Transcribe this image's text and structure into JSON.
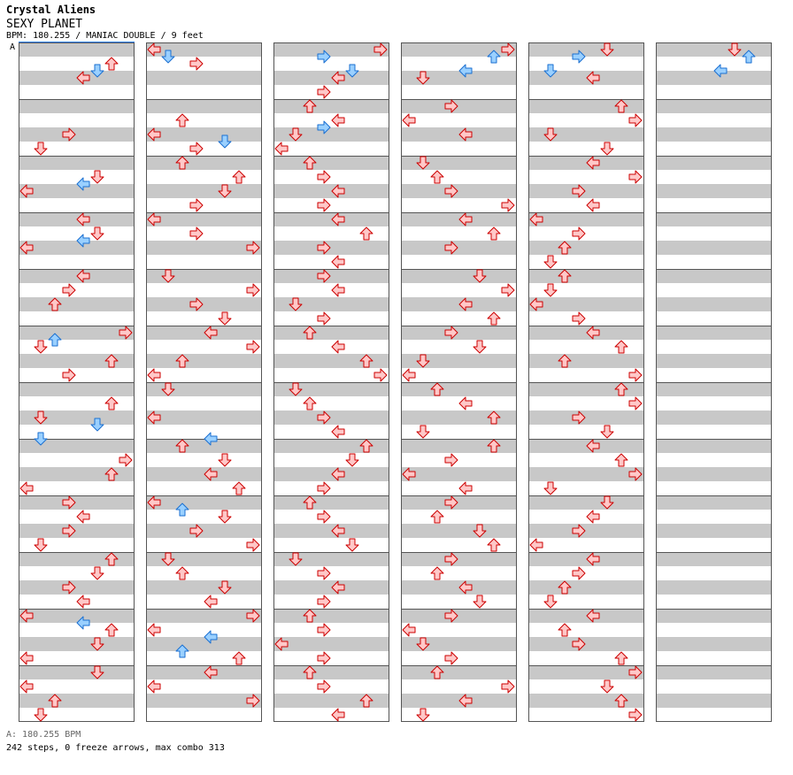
{
  "header": {
    "artist": "Crystal Aliens",
    "song": "SEXY PLANET",
    "meta": "BPM: 180.255 / MANIAC DOUBLE / 9 feet",
    "bpm_marker": "A"
  },
  "footer": {
    "bpm": "A: 180.255 BPM",
    "stats": "242 steps, 0 freeze arrows, max combo 313"
  },
  "colors": {
    "stripe_gray": "#c8c8c8",
    "stripe_white": "#ffffff",
    "border": "#555555",
    "arrow_red_fill": "#ffc8c8",
    "arrow_red_stroke": "#cc0000",
    "arrow_blue_fill": "#9ad0ff",
    "arrow_blue_stroke": "#1a6fd1"
  },
  "chart_data": {
    "type": "step-chart",
    "columns": 6,
    "measures_per_column": 12,
    "lanes": 8,
    "rows_per_measure": 16,
    "lane_directions": [
      "left",
      "down",
      "up",
      "right",
      "left",
      "down",
      "up",
      "right"
    ],
    "notes": [
      [
        0,
        0,
        4,
        6
      ],
      [
        0,
        0,
        6,
        5
      ],
      [
        0,
        0,
        8,
        4
      ],
      [
        0,
        1,
        8,
        3
      ],
      [
        0,
        1,
        12,
        1
      ],
      [
        0,
        2,
        4,
        5
      ],
      [
        0,
        2,
        6,
        4
      ],
      [
        0,
        2,
        8,
        0
      ],
      [
        0,
        3,
        0,
        4
      ],
      [
        0,
        3,
        4,
        5
      ],
      [
        0,
        3,
        6,
        4
      ],
      [
        0,
        3,
        8,
        0
      ],
      [
        0,
        4,
        0,
        4
      ],
      [
        0,
        4,
        4,
        3
      ],
      [
        0,
        4,
        8,
        2
      ],
      [
        0,
        5,
        0,
        7
      ],
      [
        0,
        5,
        2,
        2
      ],
      [
        0,
        5,
        4,
        1
      ],
      [
        0,
        5,
        8,
        6
      ],
      [
        0,
        5,
        12,
        3
      ],
      [
        0,
        6,
        4,
        6
      ],
      [
        0,
        6,
        8,
        1
      ],
      [
        0,
        6,
        10,
        5
      ],
      [
        0,
        6,
        14,
        1
      ],
      [
        0,
        7,
        4,
        7
      ],
      [
        0,
        7,
        8,
        6
      ],
      [
        0,
        7,
        12,
        0
      ],
      [
        0,
        8,
        0,
        3
      ],
      [
        0,
        8,
        4,
        4
      ],
      [
        0,
        8,
        8,
        3
      ],
      [
        0,
        8,
        12,
        1
      ],
      [
        0,
        9,
        0,
        6
      ],
      [
        0,
        9,
        4,
        5
      ],
      [
        0,
        9,
        8,
        3
      ],
      [
        0,
        9,
        12,
        4
      ],
      [
        0,
        10,
        0,
        0
      ],
      [
        0,
        10,
        2,
        4
      ],
      [
        0,
        10,
        4,
        6
      ],
      [
        0,
        10,
        8,
        5
      ],
      [
        0,
        10,
        12,
        0
      ],
      [
        0,
        11,
        0,
        5
      ],
      [
        0,
        11,
        4,
        0
      ],
      [
        0,
        11,
        8,
        2
      ],
      [
        0,
        11,
        12,
        1
      ],
      [
        1,
        0,
        0,
        0
      ],
      [
        1,
        0,
        2,
        1
      ],
      [
        1,
        0,
        4,
        3
      ],
      [
        1,
        1,
        4,
        2
      ],
      [
        1,
        1,
        8,
        0
      ],
      [
        1,
        1,
        10,
        5
      ],
      [
        1,
        1,
        12,
        3
      ],
      [
        1,
        2,
        0,
        2
      ],
      [
        1,
        2,
        4,
        6
      ],
      [
        1,
        2,
        8,
        5
      ],
      [
        1,
        2,
        12,
        3
      ],
      [
        1,
        3,
        0,
        0
      ],
      [
        1,
        3,
        4,
        3
      ],
      [
        1,
        3,
        8,
        7
      ],
      [
        1,
        4,
        0,
        1
      ],
      [
        1,
        4,
        4,
        7
      ],
      [
        1,
        4,
        8,
        3
      ],
      [
        1,
        4,
        12,
        5
      ],
      [
        1,
        5,
        0,
        4
      ],
      [
        1,
        5,
        4,
        7
      ],
      [
        1,
        5,
        8,
        2
      ],
      [
        1,
        5,
        12,
        0
      ],
      [
        1,
        6,
        0,
        1
      ],
      [
        1,
        6,
        8,
        0
      ],
      [
        1,
        6,
        14,
        4
      ],
      [
        1,
        7,
        0,
        2
      ],
      [
        1,
        7,
        4,
        5
      ],
      [
        1,
        7,
        8,
        4
      ],
      [
        1,
        7,
        12,
        6
      ],
      [
        1,
        8,
        0,
        0
      ],
      [
        1,
        8,
        2,
        2
      ],
      [
        1,
        8,
        4,
        5
      ],
      [
        1,
        8,
        8,
        3
      ],
      [
        1,
        8,
        12,
        7
      ],
      [
        1,
        9,
        0,
        1
      ],
      [
        1,
        9,
        4,
        2
      ],
      [
        1,
        9,
        8,
        5
      ],
      [
        1,
        9,
        12,
        4
      ],
      [
        1,
        10,
        0,
        7
      ],
      [
        1,
        10,
        4,
        0
      ],
      [
        1,
        10,
        6,
        4
      ],
      [
        1,
        10,
        10,
        2
      ],
      [
        1,
        10,
        12,
        6
      ],
      [
        1,
        11,
        0,
        4
      ],
      [
        1,
        11,
        4,
        0
      ],
      [
        1,
        11,
        8,
        7
      ],
      [
        2,
        0,
        0,
        7
      ],
      [
        2,
        0,
        2,
        3
      ],
      [
        2,
        0,
        6,
        5
      ],
      [
        2,
        0,
        8,
        4
      ],
      [
        2,
        0,
        12,
        3
      ],
      [
        2,
        1,
        0,
        2
      ],
      [
        2,
        1,
        4,
        4
      ],
      [
        2,
        1,
        6,
        3
      ],
      [
        2,
        1,
        8,
        1
      ],
      [
        2,
        1,
        12,
        0
      ],
      [
        2,
        2,
        0,
        2
      ],
      [
        2,
        2,
        4,
        3
      ],
      [
        2,
        2,
        8,
        4
      ],
      [
        2,
        2,
        12,
        3
      ],
      [
        2,
        3,
        0,
        4
      ],
      [
        2,
        3,
        4,
        6
      ],
      [
        2,
        3,
        8,
        3
      ],
      [
        2,
        3,
        12,
        4
      ],
      [
        2,
        4,
        0,
        3
      ],
      [
        2,
        4,
        4,
        4
      ],
      [
        2,
        4,
        8,
        1
      ],
      [
        2,
        4,
        12,
        3
      ],
      [
        2,
        5,
        0,
        2
      ],
      [
        2,
        5,
        4,
        4
      ],
      [
        2,
        5,
        8,
        6
      ],
      [
        2,
        5,
        12,
        7
      ],
      [
        2,
        6,
        0,
        1
      ],
      [
        2,
        6,
        4,
        2
      ],
      [
        2,
        6,
        8,
        3
      ],
      [
        2,
        6,
        12,
        4
      ],
      [
        2,
        7,
        0,
        6
      ],
      [
        2,
        7,
        4,
        5
      ],
      [
        2,
        7,
        8,
        4
      ],
      [
        2,
        7,
        12,
        3
      ],
      [
        2,
        8,
        0,
        2
      ],
      [
        2,
        8,
        4,
        3
      ],
      [
        2,
        8,
        8,
        4
      ],
      [
        2,
        8,
        12,
        5
      ],
      [
        2,
        9,
        0,
        1
      ],
      [
        2,
        9,
        4,
        3
      ],
      [
        2,
        9,
        8,
        4
      ],
      [
        2,
        9,
        12,
        3
      ],
      [
        2,
        10,
        0,
        2
      ],
      [
        2,
        10,
        4,
        3
      ],
      [
        2,
        10,
        8,
        0
      ],
      [
        2,
        10,
        12,
        3
      ],
      [
        2,
        11,
        0,
        2
      ],
      [
        2,
        11,
        4,
        3
      ],
      [
        2,
        11,
        8,
        6
      ],
      [
        2,
        11,
        12,
        4
      ],
      [
        3,
        0,
        0,
        7
      ],
      [
        3,
        0,
        2,
        6
      ],
      [
        3,
        0,
        6,
        4
      ],
      [
        3,
        0,
        8,
        1
      ],
      [
        3,
        1,
        0,
        3
      ],
      [
        3,
        1,
        4,
        0
      ],
      [
        3,
        1,
        8,
        4
      ],
      [
        3,
        2,
        0,
        1
      ],
      [
        3,
        2,
        4,
        2
      ],
      [
        3,
        2,
        8,
        3
      ],
      [
        3,
        2,
        12,
        7
      ],
      [
        3,
        3,
        0,
        4
      ],
      [
        3,
        3,
        4,
        6
      ],
      [
        3,
        3,
        8,
        3
      ],
      [
        3,
        4,
        0,
        5
      ],
      [
        3,
        4,
        4,
        7
      ],
      [
        3,
        4,
        8,
        4
      ],
      [
        3,
        4,
        12,
        6
      ],
      [
        3,
        5,
        0,
        3
      ],
      [
        3,
        5,
        4,
        5
      ],
      [
        3,
        5,
        8,
        1
      ],
      [
        3,
        5,
        12,
        0
      ],
      [
        3,
        6,
        0,
        2
      ],
      [
        3,
        6,
        4,
        4
      ],
      [
        3,
        6,
        8,
        6
      ],
      [
        3,
        6,
        12,
        1
      ],
      [
        3,
        7,
        0,
        6
      ],
      [
        3,
        7,
        4,
        3
      ],
      [
        3,
        7,
        8,
        0
      ],
      [
        3,
        7,
        12,
        4
      ],
      [
        3,
        8,
        0,
        3
      ],
      [
        3,
        8,
        4,
        2
      ],
      [
        3,
        8,
        8,
        5
      ],
      [
        3,
        8,
        12,
        6
      ],
      [
        3,
        9,
        0,
        3
      ],
      [
        3,
        9,
        4,
        2
      ],
      [
        3,
        9,
        8,
        4
      ],
      [
        3,
        9,
        12,
        5
      ],
      [
        3,
        10,
        0,
        3
      ],
      [
        3,
        10,
        4,
        0
      ],
      [
        3,
        10,
        8,
        1
      ],
      [
        3,
        10,
        12,
        3
      ],
      [
        3,
        11,
        0,
        2
      ],
      [
        3,
        11,
        4,
        7
      ],
      [
        3,
        11,
        8,
        4
      ],
      [
        3,
        11,
        12,
        1
      ],
      [
        4,
        0,
        0,
        5
      ],
      [
        4,
        0,
        2,
        3
      ],
      [
        4,
        0,
        6,
        1
      ],
      [
        4,
        0,
        8,
        4
      ],
      [
        4,
        1,
        0,
        6
      ],
      [
        4,
        1,
        4,
        7
      ],
      [
        4,
        1,
        8,
        1
      ],
      [
        4,
        1,
        12,
        5
      ],
      [
        4,
        2,
        0,
        4
      ],
      [
        4,
        2,
        4,
        7
      ],
      [
        4,
        2,
        8,
        3
      ],
      [
        4,
        2,
        12,
        4
      ],
      [
        4,
        3,
        0,
        0
      ],
      [
        4,
        3,
        4,
        3
      ],
      [
        4,
        3,
        8,
        2
      ],
      [
        4,
        3,
        12,
        1
      ],
      [
        4,
        4,
        0,
        2
      ],
      [
        4,
        4,
        4,
        1
      ],
      [
        4,
        4,
        8,
        0
      ],
      [
        4,
        4,
        12,
        3
      ],
      [
        4,
        5,
        0,
        4
      ],
      [
        4,
        5,
        4,
        6
      ],
      [
        4,
        5,
        8,
        2
      ],
      [
        4,
        5,
        12,
        7
      ],
      [
        4,
        6,
        0,
        6
      ],
      [
        4,
        6,
        4,
        7
      ],
      [
        4,
        6,
        8,
        3
      ],
      [
        4,
        6,
        12,
        5
      ],
      [
        4,
        7,
        0,
        4
      ],
      [
        4,
        7,
        4,
        6
      ],
      [
        4,
        7,
        8,
        7
      ],
      [
        4,
        7,
        12,
        1
      ],
      [
        4,
        8,
        0,
        5
      ],
      [
        4,
        8,
        4,
        4
      ],
      [
        4,
        8,
        8,
        3
      ],
      [
        4,
        8,
        12,
        0
      ],
      [
        4,
        9,
        0,
        4
      ],
      [
        4,
        9,
        4,
        3
      ],
      [
        4,
        9,
        8,
        2
      ],
      [
        4,
        9,
        12,
        1
      ],
      [
        4,
        10,
        0,
        4
      ],
      [
        4,
        10,
        4,
        2
      ],
      [
        4,
        10,
        8,
        3
      ],
      [
        4,
        10,
        12,
        6
      ],
      [
        4,
        11,
        0,
        7
      ],
      [
        4,
        11,
        4,
        5
      ],
      [
        4,
        11,
        8,
        6
      ],
      [
        4,
        11,
        12,
        7
      ],
      [
        5,
        0,
        0,
        5
      ],
      [
        5,
        0,
        2,
        6
      ],
      [
        5,
        0,
        6,
        4
      ]
    ]
  }
}
